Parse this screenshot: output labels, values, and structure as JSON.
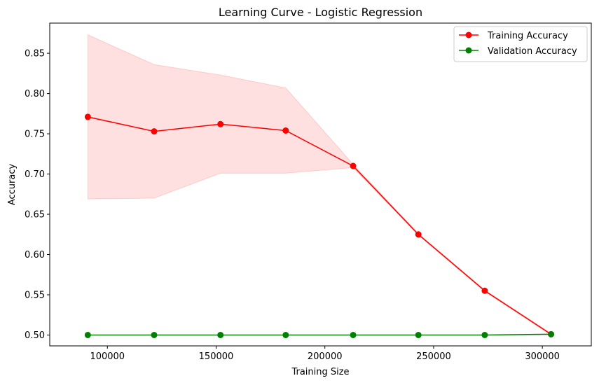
{
  "chart_data": {
    "type": "line",
    "title": "Learning Curve - Logistic Regression",
    "xlabel": "Training Size",
    "ylabel": "Accuracy",
    "xlim": [
      73500,
      322500
    ],
    "ylim": [
      0.4865,
      0.8875
    ],
    "x": [
      91000,
      121500,
      152000,
      182000,
      213000,
      243000,
      273500,
      304000
    ],
    "xticks": [
      100000,
      150000,
      200000,
      250000,
      300000
    ],
    "yticks": [
      0.5,
      0.55,
      0.6,
      0.65,
      0.7,
      0.75,
      0.8,
      0.85
    ],
    "ytick_labels": [
      "0.50",
      "0.55",
      "0.60",
      "0.65",
      "0.70",
      "0.75",
      "0.80",
      "0.85"
    ],
    "grid": false,
    "legend_position": "top-right",
    "series": [
      {
        "name": "Training Accuracy",
        "color": "#ff0000",
        "marker": "circle",
        "values": [
          0.771,
          0.753,
          0.762,
          0.754,
          0.71,
          0.625,
          0.555,
          0.501
        ],
        "band_upper": [
          0.873,
          0.836,
          0.823,
          0.807,
          0.712,
          0.626,
          0.556,
          0.502
        ],
        "band_lower": [
          0.669,
          0.67,
          0.701,
          0.701,
          0.708,
          0.624,
          0.554,
          0.5
        ],
        "band_color": "#ff0000"
      },
      {
        "name": "Validation Accuracy",
        "color": "#008000",
        "marker": "circle",
        "values": [
          0.5,
          0.5,
          0.5,
          0.5,
          0.5,
          0.5,
          0.5,
          0.501
        ]
      }
    ]
  }
}
